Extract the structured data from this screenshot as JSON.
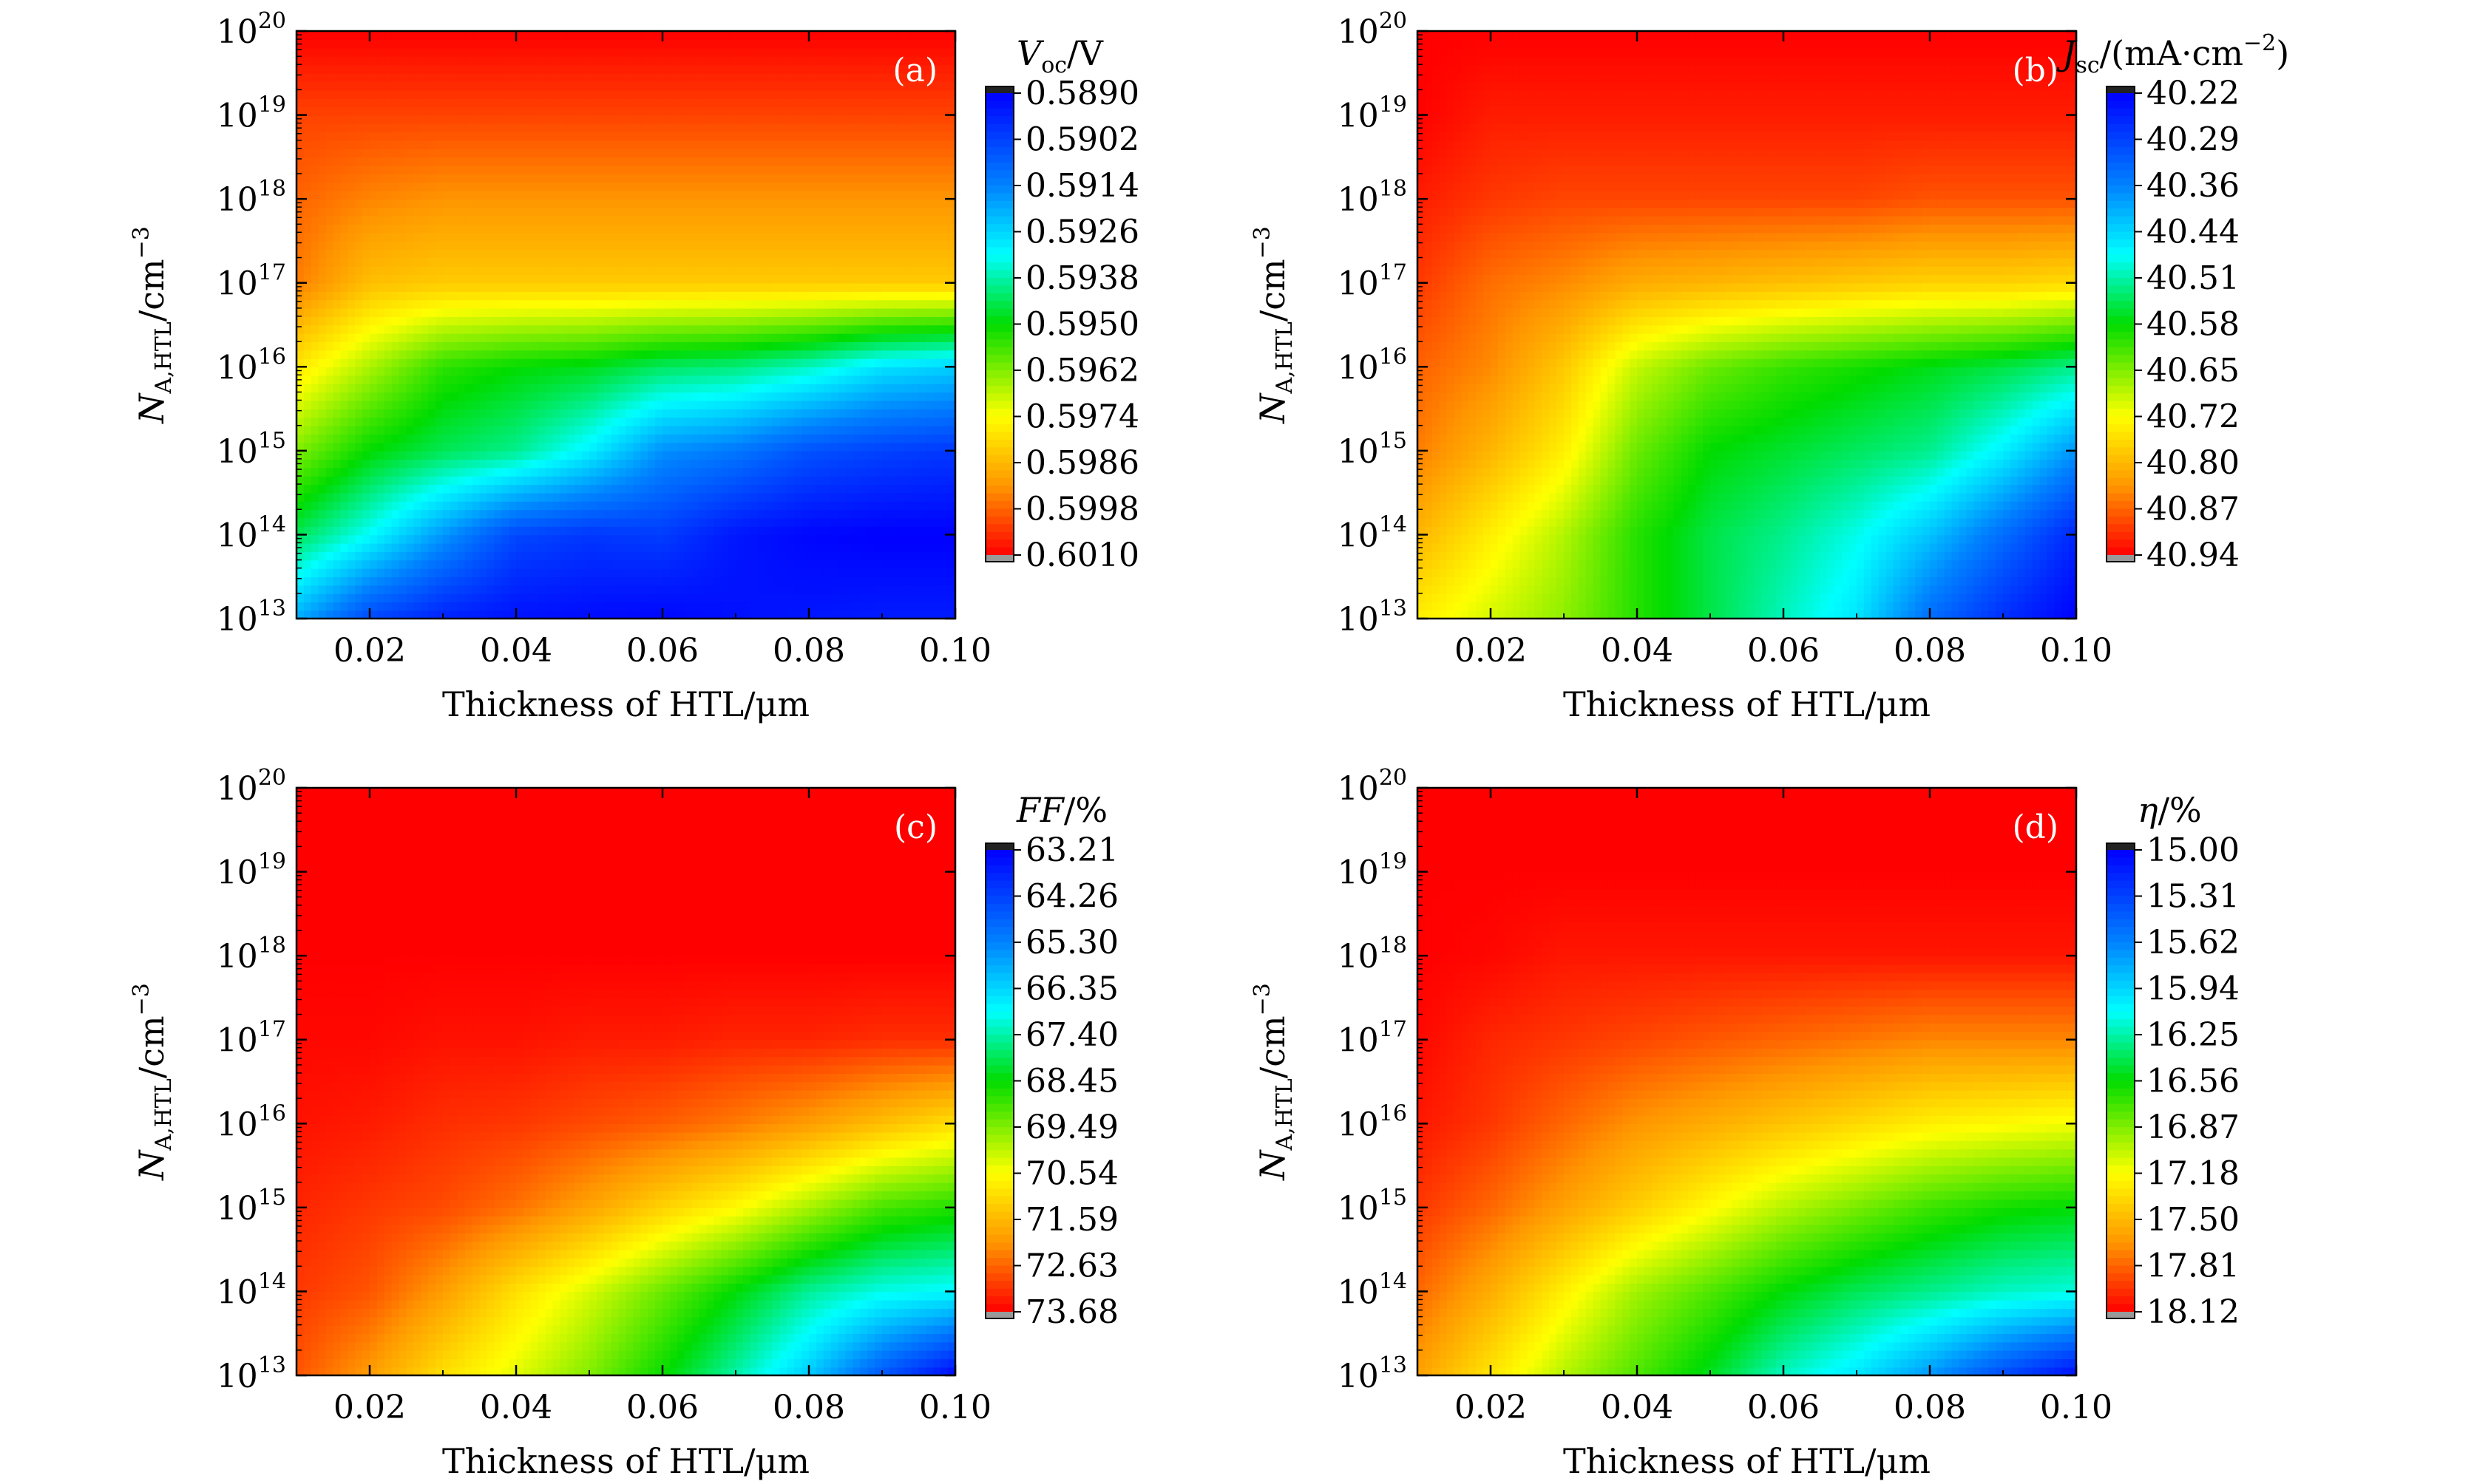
{
  "figure": {
    "x_axis_title": "Thickness of HTL/μm",
    "y_axis_title": {
      "main": "N",
      "sub": "A,HTL",
      "unit": "/cm",
      "unit_exp": "−3"
    },
    "x_ticks": [
      "0.02",
      "0.04",
      "0.06",
      "0.08",
      "0.10"
    ],
    "y_ticks": [
      {
        "base": "10",
        "exp": "13"
      },
      {
        "base": "10",
        "exp": "14"
      },
      {
        "base": "10",
        "exp": "15"
      },
      {
        "base": "10",
        "exp": "16"
      },
      {
        "base": "10",
        "exp": "17"
      },
      {
        "base": "10",
        "exp": "18"
      },
      {
        "base": "10",
        "exp": "19"
      },
      {
        "base": "10",
        "exp": "20"
      }
    ]
  },
  "chart_data": [
    {
      "type": "heatmap",
      "panel_tag": "(a)",
      "colorbar_title": {
        "main": "V",
        "sub": "oc",
        "tail": "/V",
        "italic_main": true
      },
      "colorbar_ticks": [
        "0.5890",
        "0.5902",
        "0.5914",
        "0.5926",
        "0.5938",
        "0.5950",
        "0.5962",
        "0.5974",
        "0.5986",
        "0.5998",
        "0.6010"
      ],
      "xlabel": "Thickness of HTL/μm",
      "ylabel": "NA,HTL/cm−3",
      "x_range": [
        0.01,
        0.1
      ],
      "y_range_log10": [
        13,
        20
      ],
      "y_scale": "log",
      "zlim": [
        0.589,
        0.601
      ],
      "colormap_low_to_high_value": "blue → cyan → green → yellow → orange → red",
      "x": [
        0.01,
        0.02,
        0.03,
        0.04,
        0.05,
        0.06,
        0.07,
        0.08,
        0.09,
        0.1
      ],
      "y_log10": [
        13,
        14,
        15,
        16,
        17,
        18,
        19,
        20
      ],
      "z": [
        [
          0.592,
          0.5903,
          0.5896,
          0.5893,
          0.5892,
          0.5891,
          0.5893,
          0.5894,
          0.5895,
          0.5895
        ],
        [
          0.5944,
          0.5932,
          0.5917,
          0.5903,
          0.59,
          0.5901,
          0.5894,
          0.5891,
          0.589,
          0.589
        ],
        [
          0.5962,
          0.595,
          0.5944,
          0.594,
          0.593,
          0.5916,
          0.5912,
          0.5905,
          0.5902,
          0.59
        ],
        [
          0.5978,
          0.5966,
          0.5954,
          0.595,
          0.5948,
          0.5943,
          0.5941,
          0.5936,
          0.5928,
          0.5925
        ],
        [
          0.5995,
          0.5985,
          0.5983,
          0.5983,
          0.5983,
          0.5983,
          0.5983,
          0.5983,
          0.5983,
          0.5983
        ],
        [
          0.5998,
          0.5994,
          0.5992,
          0.5992,
          0.5992,
          0.5992,
          0.5992,
          0.5992,
          0.5992,
          0.5992
        ],
        [
          0.6002,
          0.6002,
          0.6002,
          0.6002,
          0.6002,
          0.6002,
          0.6002,
          0.6002,
          0.6002,
          0.6002
        ],
        [
          0.601,
          0.601,
          0.601,
          0.601,
          0.601,
          0.601,
          0.601,
          0.601,
          0.601,
          0.601
        ]
      ]
    },
    {
      "type": "heatmap",
      "panel_tag": "(b)",
      "colorbar_title": {
        "main": "J",
        "sub": "sc",
        "tail": "/(mA·cm",
        "tail_exp": "−2",
        "tail_end": ")",
        "italic_main": true
      },
      "colorbar_ticks": [
        "40.22",
        "40.29",
        "40.36",
        "40.44",
        "40.51",
        "40.58",
        "40.65",
        "40.72",
        "40.80",
        "40.87",
        "40.94"
      ],
      "xlabel": "Thickness of HTL/μm",
      "ylabel": "NA,HTL/cm−3",
      "x_range": [
        0.01,
        0.1
      ],
      "y_range_log10": [
        13,
        20
      ],
      "y_scale": "log",
      "zlim": [
        40.22,
        40.94
      ],
      "colormap_low_to_high_value": "blue → cyan → green → yellow → orange → red",
      "x": [
        0.01,
        0.02,
        0.03,
        0.04,
        0.05,
        0.06,
        0.07,
        0.08,
        0.09,
        0.1
      ],
      "y_log10": [
        13,
        14,
        15,
        16,
        17,
        18,
        19,
        20
      ],
      "z": [
        [
          40.74,
          40.7,
          40.66,
          40.6,
          40.55,
          40.5,
          40.45,
          40.34,
          40.27,
          40.22
        ],
        [
          40.8,
          40.74,
          40.68,
          40.6,
          40.55,
          40.52,
          40.48,
          40.42,
          40.34,
          40.26
        ],
        [
          40.85,
          40.8,
          40.74,
          40.64,
          40.58,
          40.56,
          40.54,
          40.52,
          40.46,
          40.38
        ],
        [
          40.87,
          40.84,
          40.78,
          40.69,
          40.64,
          40.61,
          40.59,
          40.57,
          40.55,
          40.52
        ],
        [
          40.9,
          40.86,
          40.84,
          40.81,
          40.8,
          40.79,
          40.78,
          40.77,
          40.77,
          40.76
        ],
        [
          40.92,
          40.9,
          40.89,
          40.89,
          40.89,
          40.89,
          40.89,
          40.88,
          40.88,
          40.88
        ],
        [
          40.94,
          40.92,
          40.92,
          40.92,
          40.92,
          40.92,
          40.92,
          40.92,
          40.92,
          40.92
        ],
        [
          40.94,
          40.94,
          40.94,
          40.94,
          40.94,
          40.94,
          40.94,
          40.94,
          40.94,
          40.94
        ]
      ]
    },
    {
      "type": "heatmap",
      "panel_tag": "(c)",
      "colorbar_title": {
        "main": "FF",
        "sub": "",
        "tail": "/%",
        "italic_main": true
      },
      "colorbar_ticks": [
        "63.21",
        "64.26",
        "65.30",
        "66.35",
        "67.40",
        "68.45",
        "69.49",
        "70.54",
        "71.59",
        "72.63",
        "73.68"
      ],
      "xlabel": "Thickness of HTL/μm",
      "ylabel": "NA,HTL/cm−3",
      "x_range": [
        0.01,
        0.1
      ],
      "y_range_log10": [
        13,
        20
      ],
      "y_scale": "log",
      "zlim": [
        63.21,
        73.68
      ],
      "colormap_low_to_high_value": "blue → cyan → green → yellow → orange → red",
      "x": [
        0.01,
        0.02,
        0.03,
        0.04,
        0.05,
        0.06,
        0.07,
        0.08,
        0.09,
        0.1
      ],
      "y_log10": [
        13,
        14,
        15,
        16,
        17,
        18,
        19,
        20
      ],
      "z": [
        [
          72.8,
          72.0,
          71.0,
          70.3,
          69.5,
          68.5,
          67.4,
          66.2,
          64.6,
          63.3
        ],
        [
          73.1,
          72.8,
          72.0,
          71.0,
          70.2,
          69.3,
          68.4,
          67.5,
          67.0,
          66.8
        ],
        [
          73.3,
          73.1,
          72.9,
          72.5,
          71.9,
          71.2,
          70.6,
          69.8,
          69.0,
          68.7
        ],
        [
          73.5,
          73.4,
          73.2,
          73.1,
          72.9,
          72.7,
          72.4,
          72.0,
          71.5,
          71.0
        ],
        [
          73.6,
          73.6,
          73.5,
          73.5,
          73.4,
          73.4,
          73.3,
          73.3,
          73.2,
          73.2
        ],
        [
          73.68,
          73.68,
          73.68,
          73.68,
          73.68,
          73.68,
          73.68,
          73.68,
          73.68,
          73.68
        ],
        [
          73.68,
          73.68,
          73.68,
          73.68,
          73.68,
          73.68,
          73.68,
          73.68,
          73.68,
          73.68
        ],
        [
          73.68,
          73.68,
          73.68,
          73.68,
          73.68,
          73.68,
          73.68,
          73.68,
          73.68,
          73.68
        ]
      ]
    },
    {
      "type": "heatmap",
      "panel_tag": "(d)",
      "colorbar_title": {
        "main": "η",
        "sub": "",
        "tail": "/%",
        "italic_main": true
      },
      "colorbar_ticks": [
        "15.00",
        "15.31",
        "15.62",
        "15.94",
        "16.25",
        "16.56",
        "16.87",
        "17.18",
        "17.50",
        "17.81",
        "18.12"
      ],
      "xlabel": "Thickness of HTL/μm",
      "ylabel": "NA,HTL/cm−3",
      "x_range": [
        0.01,
        0.1
      ],
      "y_range_log10": [
        13,
        20
      ],
      "y_scale": "log",
      "zlim": [
        15.0,
        18.12
      ],
      "colormap_low_to_high_value": "blue → cyan → green → yellow → orange → red",
      "x": [
        0.01,
        0.02,
        0.03,
        0.04,
        0.05,
        0.06,
        0.07,
        0.08,
        0.09,
        0.1
      ],
      "y_log10": [
        13,
        14,
        15,
        16,
        17,
        18,
        19,
        20
      ],
      "z": [
        [
          17.6,
          17.3,
          17.0,
          16.75,
          16.5,
          16.2,
          16.0,
          15.7,
          15.35,
          15.05
        ],
        [
          17.8,
          17.55,
          17.25,
          16.95,
          16.75,
          16.55,
          16.4,
          16.3,
          16.2,
          16.15
        ],
        [
          17.95,
          17.8,
          17.6,
          17.4,
          17.2,
          17.0,
          16.85,
          16.7,
          16.6,
          16.55
        ],
        [
          18.05,
          17.95,
          17.8,
          17.65,
          17.55,
          17.45,
          17.35,
          17.25,
          17.2,
          17.15
        ],
        [
          18.1,
          18.0,
          17.95,
          17.9,
          17.85,
          17.8,
          17.75,
          17.7,
          17.7,
          17.7
        ],
        [
          18.12,
          18.1,
          18.05,
          18.05,
          18.05,
          18.05,
          18.05,
          18.05,
          18.05,
          18.05
        ],
        [
          18.12,
          18.12,
          18.12,
          18.12,
          18.12,
          18.12,
          18.12,
          18.12,
          18.12,
          18.12
        ],
        [
          18.12,
          18.12,
          18.12,
          18.12,
          18.12,
          18.12,
          18.12,
          18.12,
          18.12,
          18.12
        ]
      ]
    }
  ]
}
